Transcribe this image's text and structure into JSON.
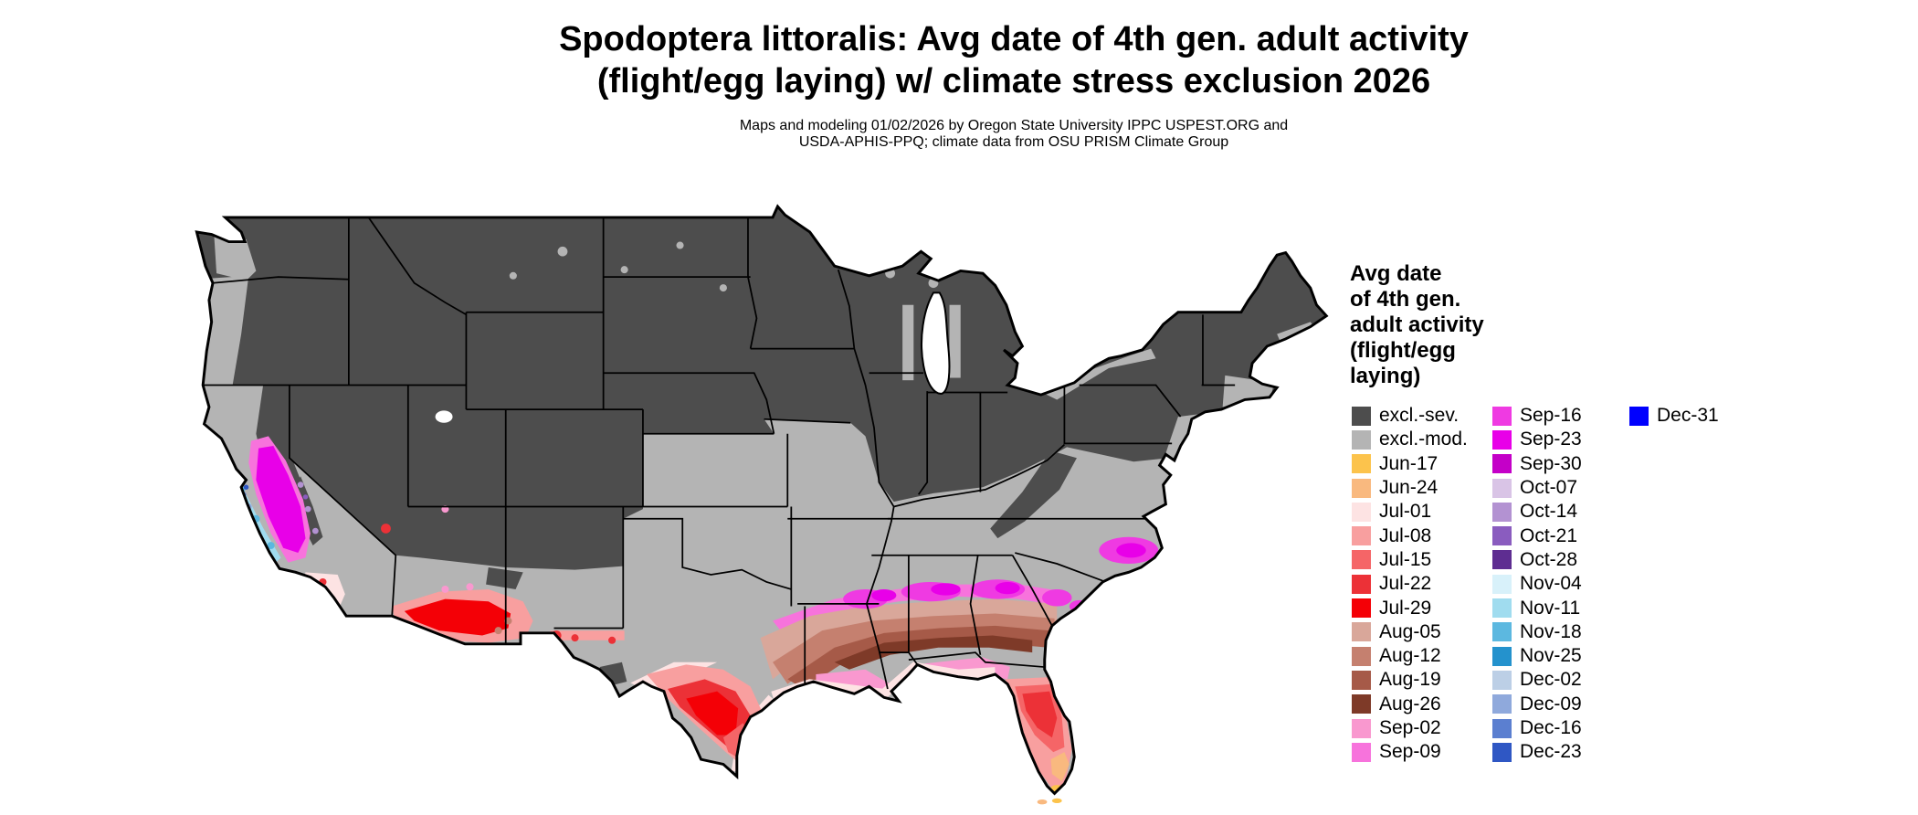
{
  "header": {
    "title_line1": "Spodoptera littoralis: Avg date of 4th gen. adult activity",
    "title_line2": "(flight/egg laying) w/ climate stress exclusion 2026",
    "subtitle_line1": "Maps and modeling 01/02/2026 by Oregon State University IPPC USPEST.ORG and",
    "subtitle_line2": "USDA-APHIS-PPQ; climate data from OSU PRISM Climate Group"
  },
  "legend": {
    "title_line1": "Avg date",
    "title_line2": "of 4th gen.",
    "title_line3": "adult activity",
    "title_line4": "(flight/egg",
    "title_line5": "laying)",
    "columns": [
      {
        "entries": [
          {
            "key": "excl_sev",
            "label": "excl.-sev."
          },
          {
            "key": "excl_mod",
            "label": "excl.-mod."
          },
          {
            "key": "jun17",
            "label": "Jun-17"
          },
          {
            "key": "jun24",
            "label": "Jun-24"
          },
          {
            "key": "jul01",
            "label": "Jul-01"
          },
          {
            "key": "jul08",
            "label": "Jul-08"
          },
          {
            "key": "jul15",
            "label": "Jul-15"
          },
          {
            "key": "jul22",
            "label": "Jul-22"
          },
          {
            "key": "jul29",
            "label": "Jul-29"
          },
          {
            "key": "aug05",
            "label": "Aug-05"
          },
          {
            "key": "aug12",
            "label": "Aug-12"
          },
          {
            "key": "aug19",
            "label": "Aug-19"
          },
          {
            "key": "aug26",
            "label": "Aug-26"
          },
          {
            "key": "sep02",
            "label": "Sep-02"
          },
          {
            "key": "sep09",
            "label": "Sep-09"
          }
        ]
      },
      {
        "entries": [
          {
            "key": "sep16",
            "label": "Sep-16"
          },
          {
            "key": "sep23",
            "label": "Sep-23"
          },
          {
            "key": "sep30",
            "label": "Sep-30"
          },
          {
            "key": "oct07",
            "label": "Oct-07"
          },
          {
            "key": "oct14",
            "label": "Oct-14"
          },
          {
            "key": "oct21",
            "label": "Oct-21"
          },
          {
            "key": "oct28",
            "label": "Oct-28"
          },
          {
            "key": "nov04",
            "label": "Nov-04"
          },
          {
            "key": "nov11",
            "label": "Nov-11"
          },
          {
            "key": "nov18",
            "label": "Nov-18"
          },
          {
            "key": "nov25",
            "label": "Nov-25"
          },
          {
            "key": "dec02",
            "label": "Dec-02"
          },
          {
            "key": "dec09",
            "label": "Dec-09"
          },
          {
            "key": "dec16",
            "label": "Dec-16"
          },
          {
            "key": "dec23",
            "label": "Dec-23"
          }
        ]
      },
      {
        "entries": [
          {
            "key": "dec31",
            "label": "Dec-31"
          }
        ]
      }
    ]
  },
  "colors": {
    "excl_sev": "#4d4d4d",
    "excl_mod": "#b4b4b4",
    "jun17": "#fcc34c",
    "jun24": "#f9b97f",
    "jul01": "#fde3e3",
    "jul08": "#f89f9f",
    "jul15": "#f56567",
    "jul22": "#ec3137",
    "jul29": "#f40006",
    "aug05": "#d9a79a",
    "aug12": "#c5806f",
    "aug19": "#a65a48",
    "aug26": "#7e3a28",
    "sep02": "#f998cf",
    "sep09": "#f773dc",
    "sep16": "#ef3ae2",
    "sep23": "#e800e8",
    "sep30": "#c400c8",
    "oct07": "#d9c4e6",
    "oct14": "#b392d2",
    "oct21": "#8a5cbf",
    "oct28": "#5e2d91",
    "nov04": "#d8f1fa",
    "nov11": "#a0dcef",
    "nov18": "#5cb8e0",
    "nov25": "#2492cd",
    "dec02": "#bccfe6",
    "dec09": "#8fa9dc",
    "dec16": "#5b7fd0",
    "dec23": "#2f57c4",
    "dec31": "#0000fe"
  }
}
